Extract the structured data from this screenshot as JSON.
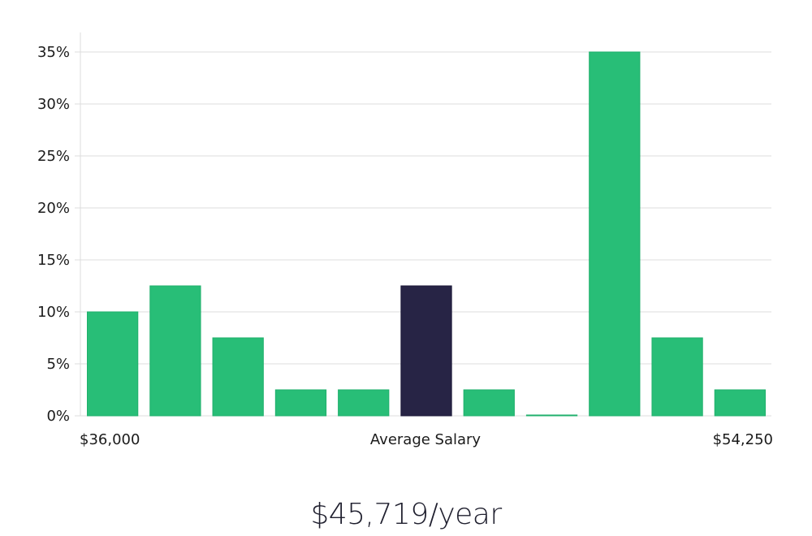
{
  "chart_data": {
    "type": "bar",
    "y_unit": "%",
    "ylim": [
      0,
      35
    ],
    "y_ticks": [
      0,
      5,
      10,
      15,
      20,
      25,
      30,
      35
    ],
    "y_tick_labels": [
      "0%",
      "5%",
      "10%",
      "15%",
      "20%",
      "25%",
      "30%",
      "35%"
    ],
    "values": [
      10,
      12.5,
      7.5,
      2.5,
      2.5,
      12.5,
      2.5,
      0,
      35,
      7.5,
      2.5
    ],
    "highlight_index": 5,
    "x_labels": {
      "min": "$36,000",
      "middle": "Average Salary",
      "max": "$54,250"
    },
    "grid": true,
    "bar_color": "#28be77",
    "highlight_color": "#272445",
    "grid_color": "#dcdcdc"
  },
  "summary": {
    "salary": "$45,719/year"
  }
}
